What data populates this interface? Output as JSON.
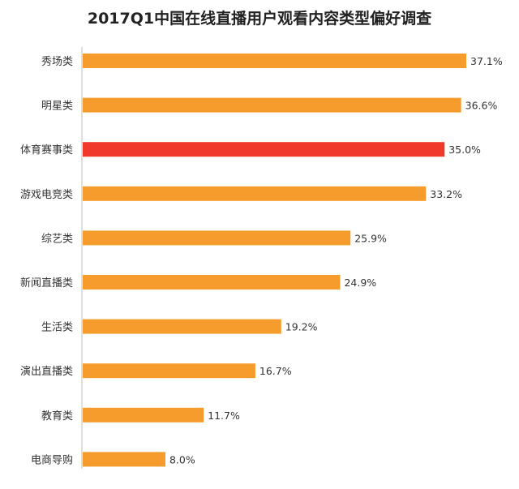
{
  "chart_data": {
    "type": "bar",
    "orientation": "horizontal",
    "title": "2017Q1中国在线直播用户观看内容类型偏好调查",
    "categories": [
      "秀场类",
      "明星类",
      "体育赛事类",
      "游戏电竞类",
      "综艺类",
      "新闻直播类",
      "生活类",
      "演出直播类",
      "教育类",
      "电商导购"
    ],
    "values": [
      37.1,
      36.6,
      35.0,
      33.2,
      25.9,
      24.9,
      19.2,
      16.7,
      11.7,
      8.0
    ],
    "value_labels": [
      "37.1%",
      "36.6%",
      "35.0%",
      "33.2%",
      "25.9%",
      "24.9%",
      "19.2%",
      "16.7%",
      "11.7%",
      "8.0%"
    ],
    "xlim": [
      0,
      37.1
    ],
    "grid": false,
    "colors": {
      "default": "#f59c2c",
      "highlight": "#f0392b",
      "highlight_index": 2
    }
  }
}
